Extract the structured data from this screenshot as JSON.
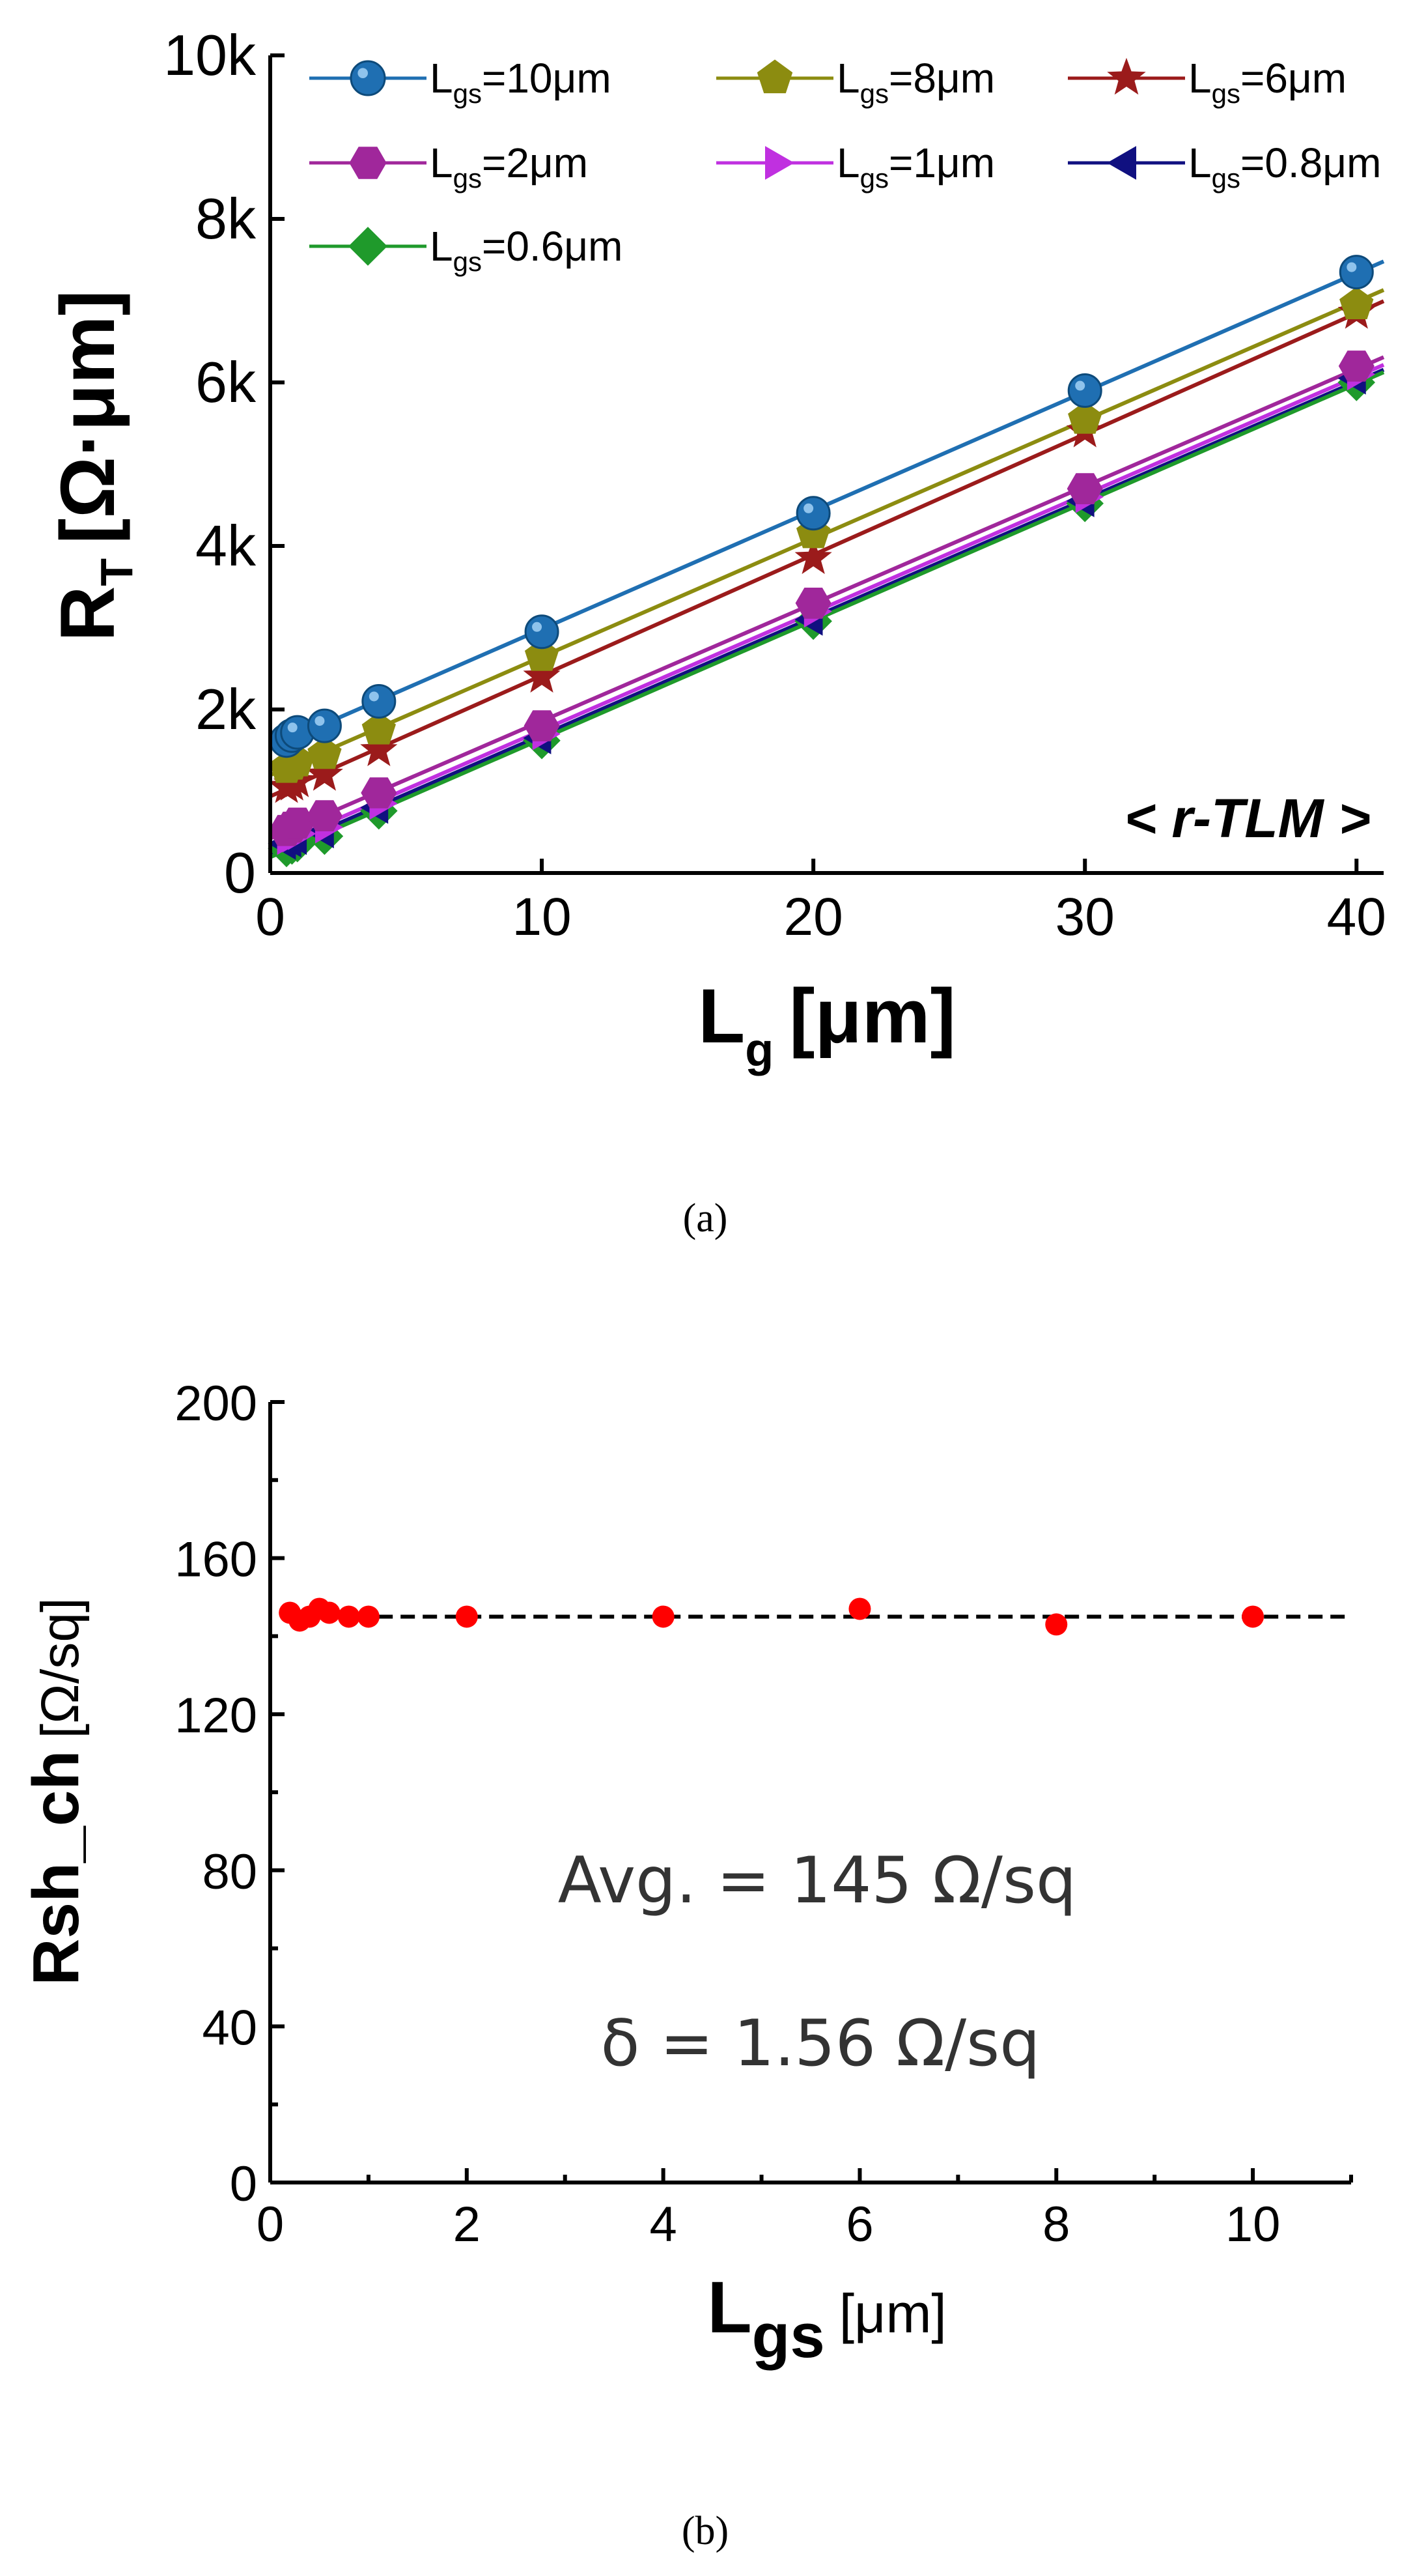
{
  "chart_data": [
    {
      "panel_label": "a",
      "type": "line",
      "xlabel_main": "L",
      "xlabel_sub": "g",
      "xlabel_unit": "[μm]",
      "ylabel_main": "R",
      "ylabel_sub": "T",
      "ylabel_unit": "[Ω·μm]",
      "annotation": "< r-TLM >",
      "xlim": [
        0,
        41
      ],
      "ylim": [
        0,
        10000
      ],
      "xticks": [
        0,
        10,
        20,
        30,
        40
      ],
      "xtick_labels": [
        "0",
        "10",
        "20",
        "30",
        "40"
      ],
      "yticks": [
        0,
        2000,
        4000,
        6000,
        8000,
        10000
      ],
      "ytick_labels": [
        "0",
        "2k",
        "4k",
        "6k",
        "8k",
        "10k"
      ],
      "x": [
        0.6,
        0.8,
        1,
        2,
        4,
        10,
        20,
        30,
        40
      ],
      "series": [
        {
          "name_main": "L",
          "name_sub": "gs",
          "name_val": "=10μm",
          "color": "#1f6fb2",
          "marker": "sphere",
          "values": [
            1620,
            1680,
            1720,
            1800,
            2100,
            2950,
            4400,
            5900,
            7350
          ]
        },
        {
          "name_main": "L",
          "name_sub": "gs",
          "name_val": "=8μm",
          "color": "#8c8c10",
          "marker": "pentagon",
          "values": [
            1280,
            1320,
            1360,
            1450,
            1750,
            2650,
            4150,
            5550,
            6950
          ]
        },
        {
          "name_main": "L",
          "name_sub": "gs",
          "name_val": "=6μm",
          "color": "#9b1b1b",
          "marker": "star",
          "values": [
            1050,
            1080,
            1120,
            1200,
            1500,
            2400,
            3850,
            5400,
            6850
          ]
        },
        {
          "name_main": "L",
          "name_sub": "gs",
          "name_val": "=2μm",
          "color": "#a0279b",
          "marker": "hexagon",
          "values": [
            520,
            560,
            610,
            700,
            980,
            1800,
            3300,
            4700,
            6200
          ]
        },
        {
          "name_main": "L",
          "name_sub": "gs",
          "name_val": "=1μm",
          "color": "#c030e0",
          "marker": "triangle-right",
          "values": [
            420,
            450,
            480,
            560,
            850,
            1700,
            3200,
            4600,
            6100
          ]
        },
        {
          "name_main": "L",
          "name_sub": "gs",
          "name_val": "=0.8μm",
          "color": "#101080",
          "marker": "triangle-left",
          "values": [
            360,
            390,
            420,
            500,
            800,
            1650,
            3100,
            4550,
            6050
          ]
        },
        {
          "name_main": "L",
          "name_sub": "gs",
          "name_val": "=0.6μm",
          "color": "#1f9a2b",
          "marker": "diamond",
          "values": [
            300,
            330,
            360,
            450,
            760,
            1620,
            3080,
            4520,
            6000
          ]
        }
      ]
    },
    {
      "panel_label": "b",
      "type": "scatter",
      "xlabel_main": "L",
      "xlabel_sub": "gs",
      "xlabel_unit": "[μm]",
      "ylabel_main": "Rsh_ch",
      "ylabel_unit": "[Ω/sq]",
      "annotation_line1": "Avg. = 145  Ω/sq",
      "annotation_line2": "δ = 1.56  Ω/sq",
      "xlim": [
        0,
        11
      ],
      "ylim": [
        0,
        200
      ],
      "xticks": [
        0,
        2,
        4,
        6,
        8,
        10
      ],
      "xtick_labels": [
        "0",
        "2",
        "4",
        "6",
        "8",
        "10"
      ],
      "yticks": [
        0,
        40,
        80,
        120,
        160,
        200
      ],
      "ytick_labels": [
        "0",
        "40",
        "80",
        "120",
        "160",
        "200"
      ],
      "average": 145,
      "point_color": "#ff0000",
      "x": [
        0.2,
        0.3,
        0.4,
        0.5,
        0.6,
        0.8,
        1,
        2,
        4,
        6,
        8,
        10
      ],
      "values": [
        146,
        144,
        145,
        147,
        146,
        145,
        145,
        145,
        145,
        147,
        143,
        145
      ]
    }
  ],
  "captions": [
    "(a)",
    "(b)"
  ]
}
